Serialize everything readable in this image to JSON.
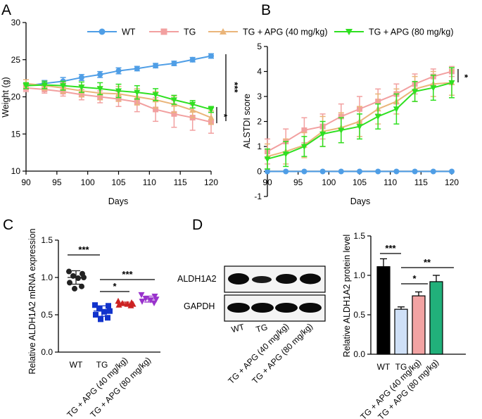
{
  "colors": {
    "WT": "#4f9ee6",
    "TG": "#f2a0a0",
    "APG40": "#eab57a",
    "APG80": "#2fe021",
    "C_WT": "#222222",
    "C_TG": "#1133cc",
    "C_A40": "#cc2222",
    "C_A80": "#9933cc",
    "D_WT": "#000000",
    "D_TG": "#cfe0f7",
    "D_A40": "#f2a3a3",
    "D_A80": "#21b07a"
  },
  "panels": {
    "A": "A",
    "B": "B",
    "C": "C",
    "D": "D"
  },
  "legend": [
    "WT",
    "TG",
    "TG + APG (40 mg/kg)",
    "TG + APG (80 mg/kg)"
  ],
  "blot": {
    "bands": [
      "ALDH1A2",
      "GAPDH"
    ]
  },
  "chart_data": [
    {
      "id": "A",
      "type": "line",
      "xlabel": "Days",
      "ylabel": "Weight (g)",
      "xlim": [
        90,
        120
      ],
      "ylim": [
        10,
        30
      ],
      "xticks": [
        90,
        95,
        100,
        105,
        110,
        115,
        120
      ],
      "yticks": [
        10,
        15,
        20,
        25,
        30
      ],
      "x": [
        90,
        93,
        96,
        99,
        102,
        105,
        108,
        111,
        114,
        117,
        120
      ],
      "series": [
        {
          "name": "WT",
          "values": [
            21.5,
            21.8,
            22.1,
            22.6,
            23.0,
            23.5,
            23.8,
            24.2,
            24.5,
            25.0,
            25.5
          ],
          "err": [
            0.4,
            0.4,
            0.5,
            0.4,
            0.4,
            0.4,
            0.3,
            0.3,
            0.3,
            0.3,
            0.3
          ]
        },
        {
          "name": "TG",
          "values": [
            21.2,
            21.0,
            20.7,
            20.3,
            20.0,
            19.7,
            19.3,
            18.3,
            17.7,
            17.2,
            16.6
          ],
          "err": [
            0.5,
            0.5,
            0.6,
            0.7,
            0.8,
            1.0,
            1.3,
            1.6,
            1.8,
            1.7,
            1.5
          ]
        },
        {
          "name": "TG + APG (40 mg/kg)",
          "values": [
            21.8,
            21.5,
            21.2,
            20.8,
            20.5,
            20.4,
            20.0,
            19.6,
            19.0,
            18.2,
            17.2
          ],
          "err": [
            0.5,
            0.6,
            0.7,
            0.8,
            0.9,
            1.0,
            1.1,
            1.1,
            1.1,
            1.0,
            0.9
          ]
        },
        {
          "name": "TG + APG (80 mg/kg)",
          "values": [
            21.5,
            21.6,
            21.5,
            21.3,
            21.1,
            20.8,
            20.6,
            20.3,
            19.6,
            19.0,
            18.3
          ],
          "err": [
            0.4,
            0.5,
            0.6,
            0.7,
            0.8,
            0.9,
            0.9,
            0.8,
            0.6,
            0.5,
            0.4
          ]
        }
      ],
      "annotations": [
        "***",
        "*"
      ]
    },
    {
      "id": "B",
      "type": "line",
      "xlabel": "Days",
      "ylabel": "ALSTDI score",
      "xlim": [
        90,
        120
      ],
      "ylim": [
        -1,
        5
      ],
      "xticks": [
        90,
        95,
        100,
        105,
        110,
        115,
        120
      ],
      "yticks": [
        -1,
        0,
        1,
        2,
        3,
        4,
        5
      ],
      "x": [
        90,
        93,
        96,
        99,
        102,
        105,
        108,
        111,
        114,
        117,
        120
      ],
      "series": [
        {
          "name": "WT",
          "values": [
            0,
            0,
            0,
            0,
            0,
            0,
            0,
            0,
            0,
            0,
            0
          ],
          "err": [
            0,
            0,
            0,
            0,
            0,
            0,
            0,
            0,
            0,
            0,
            0
          ]
        },
        {
          "name": "TG",
          "values": [
            0.8,
            1.2,
            1.65,
            1.8,
            2.2,
            2.5,
            2.8,
            3.1,
            3.5,
            3.8,
            4.0
          ],
          "err": [
            0.5,
            0.5,
            0.5,
            0.5,
            0.5,
            0.5,
            0.5,
            0.4,
            0.4,
            0.3,
            0.2
          ]
        },
        {
          "name": "TG + APG (40 mg/kg)",
          "values": [
            0.6,
            0.8,
            1.05,
            1.6,
            1.75,
            2.0,
            2.5,
            2.8,
            3.3,
            3.5,
            3.55
          ],
          "err": [
            0.5,
            0.5,
            0.5,
            0.6,
            0.6,
            0.6,
            0.6,
            0.5,
            0.5,
            0.5,
            0.5
          ]
        },
        {
          "name": "TG + APG (80 mg/kg)",
          "values": [
            0.5,
            0.7,
            1.0,
            1.5,
            1.65,
            1.8,
            2.2,
            2.5,
            3.2,
            3.35,
            3.55
          ],
          "err": [
            0.4,
            0.5,
            0.4,
            0.5,
            0.5,
            0.5,
            0.5,
            0.6,
            0.4,
            0.5,
            0.6
          ]
        }
      ],
      "annotations": [
        "*"
      ]
    },
    {
      "id": "C",
      "type": "scatter",
      "ylabel": "Relative ALDH1A2 mRNA expression",
      "ylim": [
        0,
        1.5
      ],
      "yticks": [
        0.0,
        0.5,
        1.0,
        1.5
      ],
      "categories": [
        "WT",
        "TG",
        "TG + APG (40 mg/kg)",
        "TG + APG (80 mg/kg)"
      ],
      "points": [
        [
          1.08,
          1.05,
          1.02,
          1.0,
          0.99,
          0.93,
          0.88,
          0.85
        ],
        [
          0.63,
          0.62,
          0.58,
          0.55,
          0.54,
          0.5,
          0.46,
          0.44
        ],
        [
          0.68,
          0.66,
          0.65,
          0.64,
          0.64,
          0.63,
          0.62
        ],
        [
          0.77,
          0.75,
          0.72,
          0.71,
          0.7,
          0.68,
          0.66
        ]
      ],
      "means": [
        1.0,
        0.55,
        0.65,
        0.71
      ],
      "sd": [
        0.09,
        0.07,
        0.02,
        0.04
      ],
      "annotations": [
        "***",
        "*",
        "***"
      ]
    },
    {
      "id": "D",
      "type": "bar",
      "ylabel": "Relative ALDH1A2 protein level",
      "ylim": [
        0,
        1.5
      ],
      "yticks": [
        0.0,
        0.5,
        1.0,
        1.5
      ],
      "categories": [
        "WT",
        "TG",
        "TG + APG (40 mg/kg)",
        "TG + APG (80 mg/kg)"
      ],
      "values": [
        1.11,
        0.57,
        0.74,
        0.92
      ],
      "err": [
        0.1,
        0.03,
        0.05,
        0.08
      ],
      "annotations": [
        "***",
        "*",
        "**"
      ]
    }
  ]
}
